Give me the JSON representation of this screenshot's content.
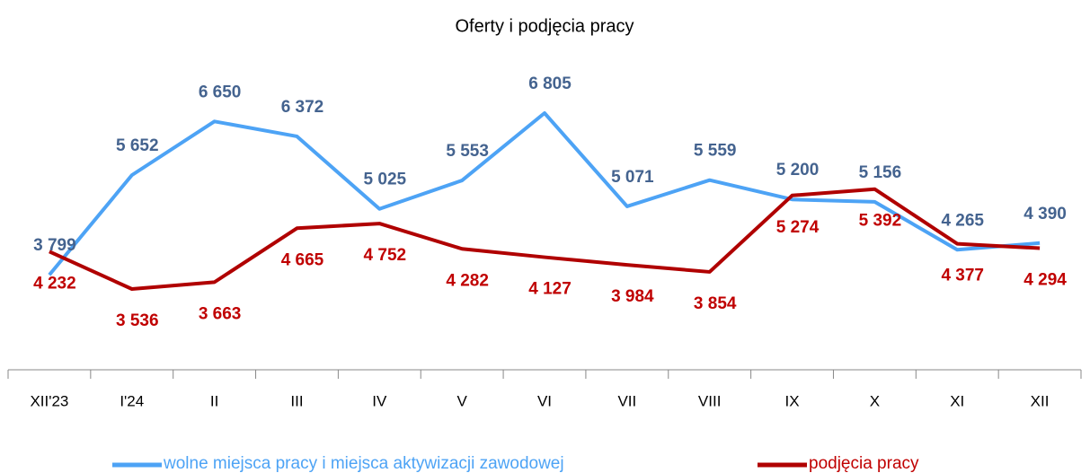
{
  "chart_data": {
    "type": "line",
    "title": "Oferty i podjęcia pracy",
    "categories": [
      "XII'23",
      "I'24",
      "II",
      "III",
      "IV",
      "V",
      "VI",
      "VII",
      "VIII",
      "IX",
      "X",
      "XI",
      "XII"
    ],
    "series": [
      {
        "name": "wolne miejsca pracy i miejsca aktywizacji zawodowej",
        "color": "#4da3f5",
        "label_color": "#44638f",
        "values": [
          3799,
          5652,
          6650,
          6372,
          5025,
          5553,
          6805,
          5071,
          5559,
          5200,
          5156,
          4265,
          4390
        ],
        "value_labels": [
          "3 799",
          "5 652",
          "6 650",
          "6 372",
          "5 025",
          "5 553",
          "6 805",
          "5 071",
          "5 559",
          "5 200",
          "5 156",
          "4 265",
          "4 390"
        ]
      },
      {
        "name": "podjęcia pracy",
        "color": "#b00000",
        "label_color": "#c00000",
        "values": [
          4232,
          3536,
          3663,
          4665,
          4752,
          4282,
          4127,
          3984,
          3854,
          5274,
          5392,
          4377,
          4294
        ],
        "value_labels": [
          "4 232",
          "3 536",
          "3 663",
          "4 665",
          "4 752",
          "4 282",
          "4 127",
          "3 984",
          "3 854",
          "5 274",
          "5 392",
          "4 377",
          "4 294"
        ]
      }
    ]
  }
}
